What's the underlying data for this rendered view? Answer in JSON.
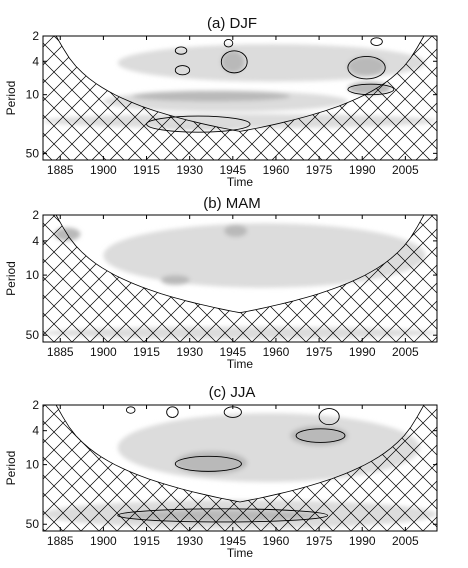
{
  "chart_data": [
    {
      "type": "heatmap",
      "title": "(a) DJF",
      "xlabel": "Time",
      "ylabel": "Period",
      "xlim": [
        1879,
        2016
      ],
      "ylim": [
        2,
        60
      ],
      "yscale": "log",
      "xticks": [
        1885,
        1900,
        1915,
        1930,
        1945,
        1960,
        1975,
        1990,
        2005
      ],
      "yticks": [
        2,
        4,
        10,
        50
      ],
      "cone_of_influence": true,
      "power_regions": [
        {
          "level": "light",
          "x": [
            1905,
            2012
          ],
          "period": [
            2.5,
            7
          ]
        },
        {
          "level": "light",
          "x": [
            1900,
            1985
          ],
          "period": [
            9,
            16
          ]
        },
        {
          "level": "medium",
          "x": [
            1910,
            1965
          ],
          "period": [
            9,
            12
          ]
        },
        {
          "level": "medium",
          "x": [
            1910,
            1960
          ],
          "period": [
            18,
            26
          ]
        },
        {
          "level": "light",
          "x": [
            1879,
            2016
          ],
          "period": [
            17,
            25
          ]
        },
        {
          "level": "medium",
          "x": [
            1941,
            1949
          ],
          "period": [
            3,
            5.5
          ]
        },
        {
          "level": "medium",
          "x": [
            1985,
            1998
          ],
          "period": [
            3.5,
            6
          ]
        },
        {
          "level": "medium",
          "x": [
            1985,
            2000
          ],
          "period": [
            7,
            10
          ]
        }
      ],
      "significant_regions": [
        {
          "x": [
            1915,
            1951
          ],
          "period": [
            18,
            28
          ]
        },
        {
          "x": [
            1941,
            1950
          ],
          "period": [
            3,
            5.5
          ]
        },
        {
          "x": [
            1985,
            1998
          ],
          "period": [
            3.5,
            6.5
          ]
        },
        {
          "x": [
            1985,
            2001
          ],
          "period": [
            7.5,
            10
          ]
        },
        {
          "x": [
            1925,
            1929
          ],
          "period": [
            2.7,
            3.3
          ]
        },
        {
          "x": [
            1942,
            1945
          ],
          "period": [
            2.2,
            2.7
          ]
        },
        {
          "x": [
            1925,
            1930
          ],
          "period": [
            4.5,
            5.8
          ]
        },
        {
          "x": [
            1993,
            1997
          ],
          "period": [
            2.1,
            2.6
          ]
        }
      ]
    },
    {
      "type": "heatmap",
      "title": "(b) MAM",
      "xlabel": "Time",
      "ylabel": "Period",
      "xlim": [
        1879,
        2016
      ],
      "ylim": [
        2,
        60
      ],
      "yscale": "log",
      "xticks": [
        1885,
        1900,
        1915,
        1930,
        1945,
        1960,
        1975,
        1990,
        2005
      ],
      "yticks": [
        2,
        4,
        10,
        50
      ],
      "cone_of_influence": true,
      "power_regions": [
        {
          "level": "light",
          "x": [
            1900,
            2012
          ],
          "period": [
            2.5,
            14
          ]
        },
        {
          "level": "medium",
          "x": [
            1883,
            1892
          ],
          "period": [
            2.8,
            4
          ]
        },
        {
          "level": "medium",
          "x": [
            1942,
            1950
          ],
          "period": [
            2.6,
            3.6
          ]
        },
        {
          "level": "medium",
          "x": [
            1920,
            1930
          ],
          "period": [
            10,
            13
          ]
        },
        {
          "level": "light",
          "x": [
            1879,
            2016
          ],
          "period": [
            40,
            55
          ]
        }
      ],
      "significant_regions": []
    },
    {
      "type": "heatmap",
      "title": "(c) JJA",
      "xlabel": "Time",
      "ylabel": "Period",
      "xlim": [
        1879,
        2016
      ],
      "ylim": [
        2,
        60
      ],
      "yscale": "log",
      "xticks": [
        1885,
        1900,
        1915,
        1930,
        1945,
        1960,
        1975,
        1990,
        2005
      ],
      "yticks": [
        2,
        4,
        10,
        50
      ],
      "cone_of_influence": true,
      "power_regions": [
        {
          "level": "light",
          "x": [
            1905,
            2010
          ],
          "period": [
            2.5,
            16
          ]
        },
        {
          "level": "medium",
          "x": [
            1925,
            1950
          ],
          "period": [
            7,
            13
          ]
        },
        {
          "level": "medium",
          "x": [
            1965,
            1985
          ],
          "period": [
            3.5,
            6
          ]
        },
        {
          "level": "light",
          "x": [
            1879,
            2016
          ],
          "period": [
            26,
            56
          ]
        },
        {
          "level": "medium",
          "x": [
            1905,
            1975
          ],
          "period": [
            34,
            46
          ]
        }
      ],
      "significant_regions": [
        {
          "x": [
            1905,
            1978
          ],
          "period": [
            33,
            47
          ]
        },
        {
          "x": [
            1925,
            1948
          ],
          "period": [
            8,
            12
          ]
        },
        {
          "x": [
            1967,
            1984
          ],
          "period": [
            3.8,
            5.5
          ]
        },
        {
          "x": [
            1922,
            1926
          ],
          "period": [
            2.1,
            2.8
          ]
        },
        {
          "x": [
            1942,
            1948
          ],
          "period": [
            2.1,
            2.8
          ]
        },
        {
          "x": [
            1908,
            1911
          ],
          "period": [
            2.1,
            2.5
          ]
        },
        {
          "x": [
            1975,
            1982
          ],
          "period": [
            2.2,
            3.4
          ]
        }
      ]
    }
  ]
}
